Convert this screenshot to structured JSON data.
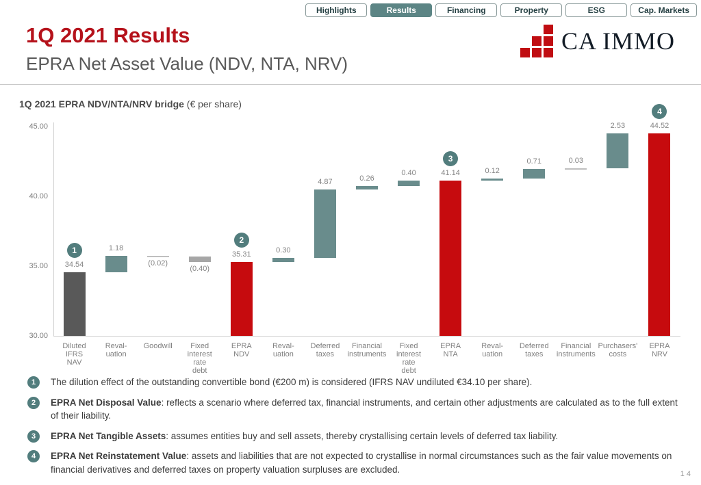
{
  "nav": {
    "tabs": [
      {
        "label": "Highlights",
        "active": false
      },
      {
        "label": "Results",
        "active": true
      },
      {
        "label": "Financing",
        "active": false
      },
      {
        "label": "Property",
        "active": false
      },
      {
        "label": "ESG",
        "active": false
      },
      {
        "label": "Cap. Markets",
        "active": false
      }
    ]
  },
  "header": {
    "title": "1Q 2021 Results",
    "subtitle": "EPRA Net Asset Value (NDV, NTA, NRV)",
    "logo_text": "CA IMMO"
  },
  "chart_title": {
    "bold": "1Q 2021 EPRA NDV/NTA/NRV bridge",
    "normal": " (€ per share)"
  },
  "chart_data": {
    "type": "bar",
    "subtype": "waterfall",
    "title": "1Q 2021 EPRA NDV/NTA/NRV bridge (€ per share)",
    "ylabel": "€ per share",
    "ylim": [
      30,
      45
    ],
    "yticks": [
      "45.00",
      "40.00",
      "35.00",
      "30.00"
    ],
    "grid": false,
    "bars": [
      {
        "label": "Diluted\nIFRS\nNAV",
        "value_label": "34.54",
        "start": 30,
        "end": 34.54,
        "color": "#595959",
        "badge": "1",
        "label_below": false
      },
      {
        "label": "Reval-\nuation",
        "value_label": "1.18",
        "start": 34.54,
        "end": 35.72,
        "color": "#698c8c",
        "label_below": false
      },
      {
        "label": "Goodwill",
        "value_label": "(0.02)",
        "start": 35.72,
        "end": 35.7,
        "color": "#bfbfbf",
        "label_below": true
      },
      {
        "label": "Fixed\ninterest\nrate\ndebt",
        "value_label": "(0.40)",
        "start": 35.7,
        "end": 35.3,
        "color": "#a6a6a6",
        "label_below": true
      },
      {
        "label": "EPRA\nNDV",
        "value_label": "35.31",
        "start": 30,
        "end": 35.31,
        "color": "#c60b0e",
        "badge": "2",
        "label_below": false
      },
      {
        "label": "Reval-\nuation",
        "value_label": "0.30",
        "start": 35.31,
        "end": 35.61,
        "color": "#698c8c",
        "label_below": false
      },
      {
        "label": "Deferred\ntaxes",
        "value_label": "4.87",
        "start": 35.61,
        "end": 40.48,
        "color": "#698c8c",
        "label_below": false
      },
      {
        "label": "Financial\ninstruments",
        "value_label": "0.26",
        "start": 40.48,
        "end": 40.74,
        "color": "#698c8c",
        "label_below": false
      },
      {
        "label": "Fixed\ninterest\nrate\ndebt",
        "value_label": "0.40",
        "start": 40.74,
        "end": 41.14,
        "color": "#698c8c",
        "label_below": false
      },
      {
        "label": "EPRA\nNTA",
        "value_label": "41.14",
        "start": 30,
        "end": 41.14,
        "color": "#c60b0e",
        "badge": "3",
        "label_below": false
      },
      {
        "label": "Reval-\nuation",
        "value_label": "0.12",
        "start": 41.14,
        "end": 41.26,
        "color": "#698c8c",
        "label_below": false
      },
      {
        "label": "Deferred\ntaxes",
        "value_label": "0.71",
        "start": 41.26,
        "end": 41.97,
        "color": "#698c8c",
        "label_below": false
      },
      {
        "label": "Financial\ninstruments",
        "value_label": "0.03",
        "start": 41.97,
        "end": 42.0,
        "color": "#bfbfbf",
        "label_below": false
      },
      {
        "label": "Purchasers'\ncosts",
        "value_label": "2.53",
        "start": 42.0,
        "end": 44.53,
        "color": "#698c8c",
        "label_below": false
      },
      {
        "label": "EPRA\nNRV",
        "value_label": "44.52",
        "start": 30,
        "end": 44.52,
        "color": "#c60b0e",
        "badge": "4",
        "label_below": false
      }
    ]
  },
  "footnotes": [
    {
      "num": "1",
      "bold": "",
      "text": "The dilution effect of the outstanding convertible bond (€200 m) is considered (IFRS NAV undiluted €34.10 per share)."
    },
    {
      "num": "2",
      "bold": "EPRA Net Disposal Value",
      "text": ": reflects a scenario where deferred tax, financial instruments, and certain other adjustments are calculated as to the full extent of their liability."
    },
    {
      "num": "3",
      "bold": "EPRA Net Tangible Assets",
      "text": ": assumes entities buy and sell assets, thereby crystallising certain levels of deferred tax liability."
    },
    {
      "num": "4",
      "bold": "EPRA Net Reinstatement Value",
      "text": ": assets and liabilities that are not expected to crystallise in normal circumstances such as the fair value movements on financial derivatives and deferred taxes on property valuation surpluses are excluded."
    }
  ],
  "page_number": "14",
  "colors": {
    "accent_red": "#c60b0e",
    "title_red": "#b5121b",
    "teal": "#698c8c",
    "badge_teal": "#527d7d",
    "dark_gray_bar": "#595959",
    "light_gray_bar": "#a6a6a6",
    "axis_gray": "#d2d2d2"
  }
}
